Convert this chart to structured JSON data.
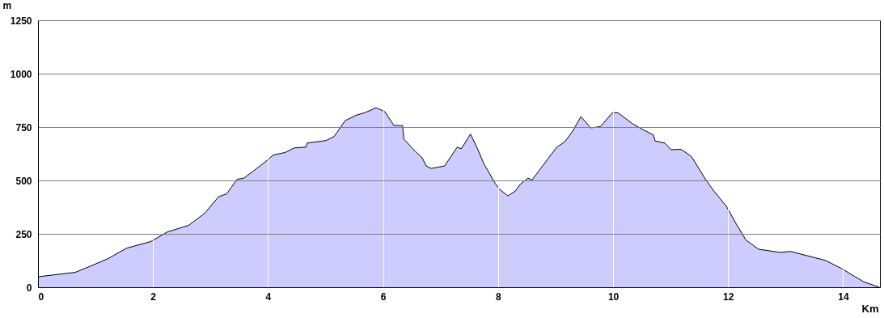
{
  "chart_data": {
    "type": "area",
    "xlabel": "Km",
    "ylabel": "m",
    "x": [
      0,
      0.65,
      0.93,
      1.21,
      1.54,
      1.96,
      2.25,
      2.62,
      2.9,
      3.14,
      3.28,
      3.46,
      3.58,
      3.74,
      3.95,
      4.09,
      4.3,
      4.45,
      4.66,
      4.68,
      5.01,
      5.15,
      5.34,
      5.53,
      5.69,
      5.88,
      6.03,
      6.19,
      6.34,
      6.36,
      6.56,
      6.68,
      6.75,
      6.84,
      7.07,
      7.29,
      7.36,
      7.52,
      7.64,
      7.75,
      7.95,
      8.02,
      8.17,
      8.3,
      8.38,
      8.52,
      8.59,
      8.86,
      9.02,
      9.16,
      9.3,
      9.44,
      9.61,
      9.78,
      9.99,
      10.09,
      10.34,
      10.52,
      10.7,
      10.73,
      10.9,
      11.01,
      11.18,
      11.36,
      11.62,
      11.76,
      11.97,
      12.14,
      12.31,
      12.53,
      12.91,
      13.08,
      13.69,
      13.97,
      14.36,
      14.63
    ],
    "series": [
      {
        "color": "#ccccff",
        "values": [
          49,
          70,
          101,
          133,
          183,
          214,
          259,
          290,
          347,
          424,
          437,
          505,
          511,
          543,
          587,
          619,
          631,
          652,
          656,
          675,
          687,
          706,
          780,
          805,
          818,
          840,
          822,
          757,
          757,
          694,
          636,
          606,
          568,
          556,
          568,
          656,
          648,
          717,
          650,
          580,
          486,
          460,
          428,
          450,
          481,
          511,
          502,
          599,
          656,
          681,
          732,
          799,
          746,
          752,
          818,
          816,
          765,
          738,
          713,
          685,
          675,
          644,
          646,
          613,
          500,
          448,
          379,
          297,
          221,
          178,
          163,
          168,
          126,
          88,
          25,
          0
        ]
      }
    ],
    "xlim": [
      0,
      14.64
    ],
    "xticks": [
      0,
      2,
      4,
      6,
      8,
      10,
      12,
      14
    ],
    "ylim": [
      0,
      1250
    ],
    "yticks": [
      0,
      250,
      500,
      750,
      1000,
      1250
    ],
    "grid": true
  }
}
